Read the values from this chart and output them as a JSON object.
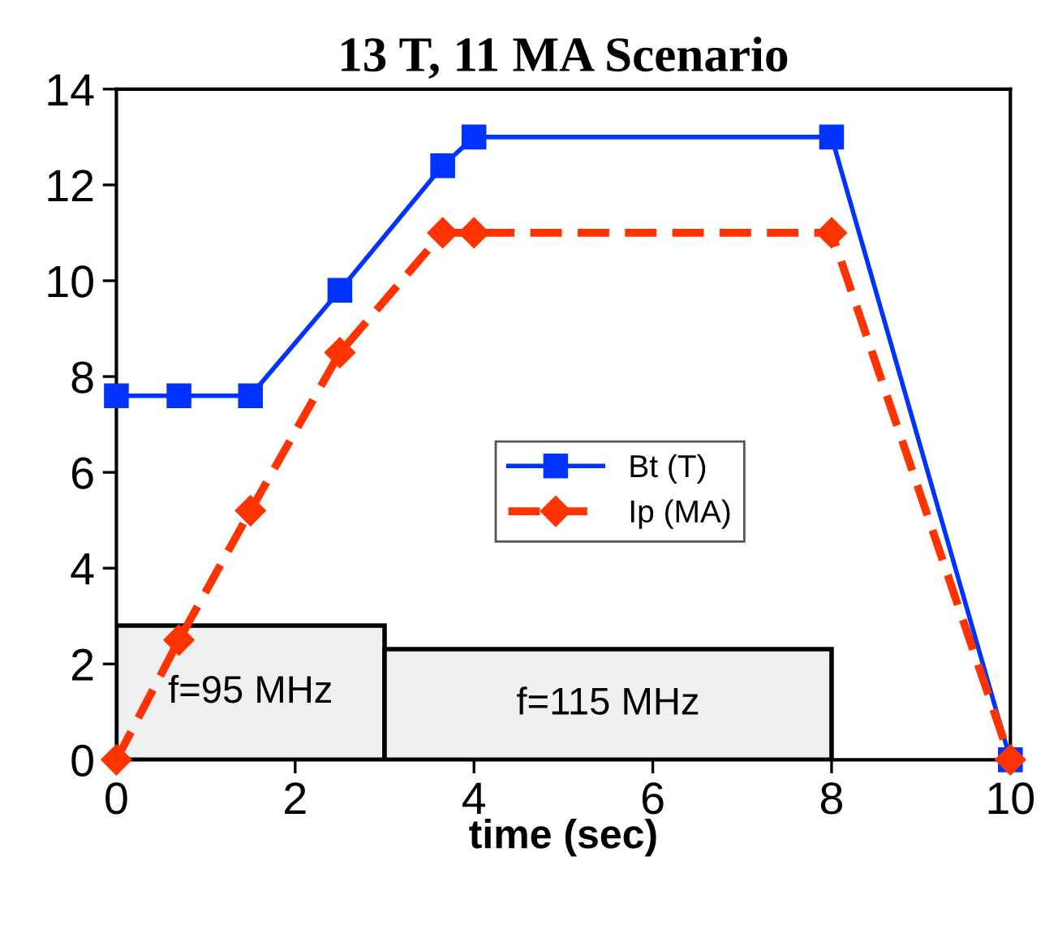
{
  "chart_data": {
    "type": "line",
    "title": "13 T, 11 MA Scenario",
    "xlabel": "time (sec)",
    "xlim": [
      0,
      10
    ],
    "ylim": [
      0,
      14
    ],
    "xticks": [
      0,
      2,
      4,
      6,
      8,
      10
    ],
    "yticks": [
      0,
      2,
      4,
      6,
      8,
      10,
      12,
      14
    ],
    "grid": false,
    "legend": "right",
    "series": [
      {
        "name": "Bt (T)",
        "color": "#0033ff",
        "marker": "square",
        "line_style": "solid",
        "x": [
          0,
          0.7,
          1.5,
          2.5,
          3.65,
          4,
          8,
          10
        ],
        "values": [
          7.6,
          7.6,
          7.6,
          9.8,
          12.4,
          13,
          13,
          0
        ]
      },
      {
        "name": "Ip (MA)",
        "color": "#ff3300",
        "marker": "diamond",
        "line_style": "dashed",
        "x": [
          0,
          0.7,
          1.5,
          2.5,
          3.65,
          4,
          8,
          10
        ],
        "values": [
          0,
          2.5,
          5.2,
          8.5,
          11,
          11,
          11,
          0
        ]
      }
    ],
    "bands": [
      {
        "axis": "x",
        "from": 0,
        "to": 3,
        "label": "f=95 MHz",
        "color": "#f0f0f0"
      },
      {
        "axis": "x",
        "from": 3,
        "to": 8,
        "label": "f=115 MHz",
        "color": "#f0f0f0"
      }
    ]
  }
}
